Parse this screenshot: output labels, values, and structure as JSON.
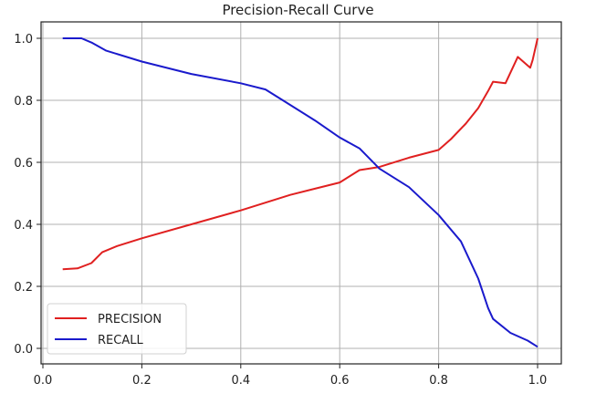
{
  "chart_data": {
    "type": "line",
    "title": "Precision-Recall Curve",
    "xlabel": "",
    "ylabel": "",
    "xlim": [
      0.0,
      1.05
    ],
    "ylim": [
      -0.04,
      1.05
    ],
    "xticks": [
      "0.0",
      "0.2",
      "0.4",
      "0.6",
      "0.8",
      "1.0"
    ],
    "yticks": [
      "0.0",
      "0.2",
      "0.4",
      "0.6",
      "0.8",
      "1.0"
    ],
    "grid": true,
    "legend_position": "lower left",
    "series": [
      {
        "name": "PRECISION",
        "color": "#e02020",
        "x": [
          0.04,
          0.07,
          0.098,
          0.12,
          0.15,
          0.2,
          0.3,
          0.4,
          0.45,
          0.5,
          0.55,
          0.6,
          0.64,
          0.68,
          0.74,
          0.8,
          0.825,
          0.855,
          0.88,
          0.9,
          0.91,
          0.935,
          0.96,
          0.985,
          0.99,
          1.0
        ],
        "y": [
          0.255,
          0.258,
          0.275,
          0.31,
          0.33,
          0.355,
          0.4,
          0.445,
          0.47,
          0.495,
          0.515,
          0.535,
          0.575,
          0.585,
          0.615,
          0.64,
          0.675,
          0.725,
          0.775,
          0.83,
          0.86,
          0.855,
          0.94,
          0.905,
          0.93,
          1.0
        ]
      },
      {
        "name": "RECALL",
        "color": "#1a1acc",
        "x": [
          0.04,
          0.078,
          0.1,
          0.128,
          0.2,
          0.3,
          0.4,
          0.45,
          0.485,
          0.55,
          0.6,
          0.64,
          0.68,
          0.74,
          0.8,
          0.845,
          0.88,
          0.9,
          0.91,
          0.945,
          0.98,
          1.0
        ],
        "y": [
          1.0,
          1.0,
          0.985,
          0.96,
          0.925,
          0.885,
          0.855,
          0.835,
          0.8,
          0.735,
          0.68,
          0.645,
          0.58,
          0.52,
          0.43,
          0.345,
          0.225,
          0.13,
          0.095,
          0.05,
          0.025,
          0.005
        ]
      }
    ]
  }
}
